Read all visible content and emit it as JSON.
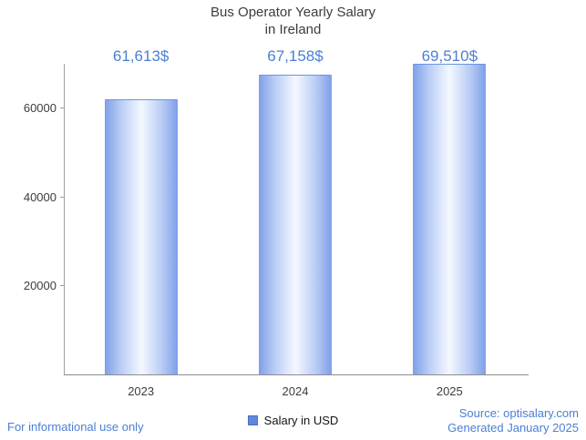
{
  "title": {
    "line1": "Bus Operator Yearly Salary",
    "line2": "in Ireland"
  },
  "chart_data": {
    "type": "bar",
    "title": "Bus Operator Yearly Salary in Ireland",
    "categories": [
      "2023",
      "2024",
      "2025"
    ],
    "values": [
      61613,
      67158,
      69510
    ],
    "value_labels": [
      "61,613$",
      "67,158$",
      "69,510$"
    ],
    "series_name": "Salary in USD",
    "xlabel": "",
    "ylabel": "",
    "ylim": [
      0,
      70000
    ],
    "yticks": [
      20000,
      40000,
      60000
    ],
    "grid": false,
    "legend_position": "bottom",
    "bar_edge_color": "#7e9fe8",
    "bar_center_color": "#f4f8ff"
  },
  "legend": {
    "label": "Salary in USD",
    "swatch_color": "#6187d8"
  },
  "footer": {
    "left": "For informational use only",
    "source": "Source: optisalary.com",
    "generated": "Generated January 2025"
  },
  "colors": {
    "accent_blue": "#4a7fd4",
    "axis": "#9e9e9e",
    "text": "#3c3c3c"
  }
}
